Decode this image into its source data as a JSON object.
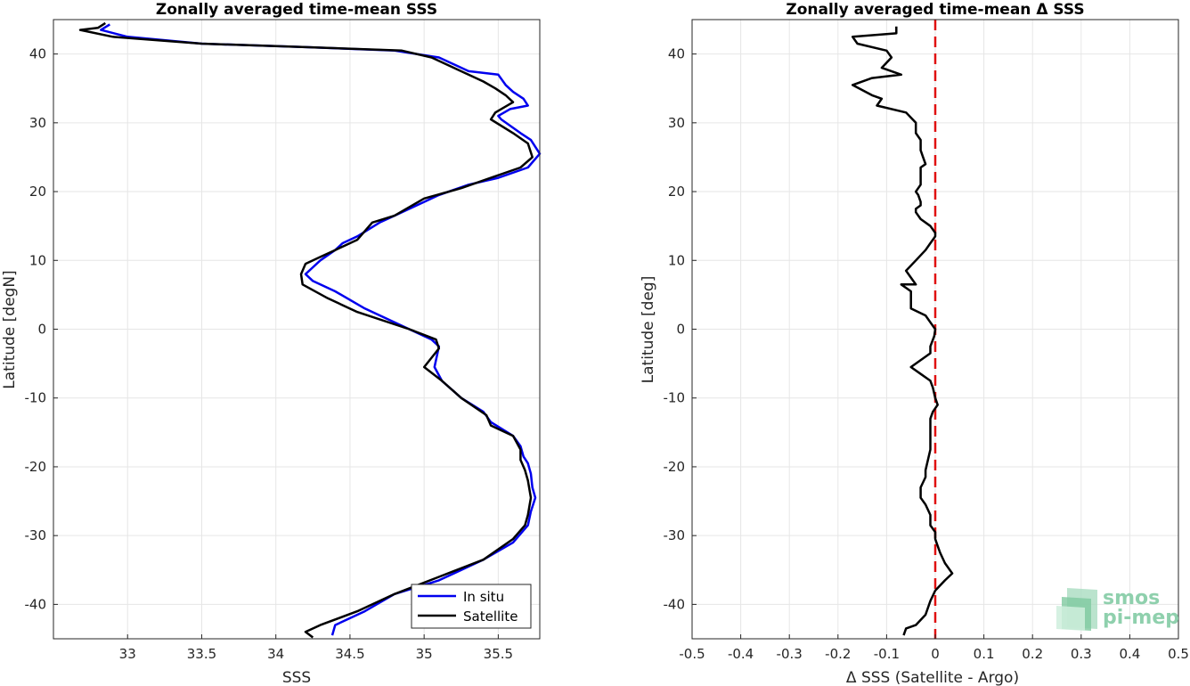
{
  "chart_data": [
    {
      "type": "line",
      "title": "Zonally averaged time-mean SSS",
      "xlabel": "SSS",
      "ylabel": "Latitude [degN]",
      "xlim": [
        32.5,
        35.78
      ],
      "ylim": [
        -45,
        45
      ],
      "xticks": [
        "33",
        "33.5",
        "34",
        "34.5",
        "35",
        "35.5"
      ],
      "yticks": [
        "40",
        "30",
        "20",
        "10",
        "0",
        "-10",
        "-20",
        "-30",
        "-40"
      ],
      "grid": true,
      "legend": "bottom-right",
      "series": [
        {
          "name": "In situ",
          "color": "#0000ee",
          "points": [
            [
              32.88,
              44.3
            ],
            [
              32.82,
              43.5
            ],
            [
              33.0,
              42.5
            ],
            [
              33.5,
              41.5
            ],
            [
              34.2,
              41.0
            ],
            [
              34.8,
              40.5
            ],
            [
              35.1,
              39.5
            ],
            [
              35.3,
              37.5
            ],
            [
              35.5,
              37.0
            ],
            [
              35.55,
              35.5
            ],
            [
              35.6,
              34.5
            ],
            [
              35.67,
              33.5
            ],
            [
              35.7,
              32.5
            ],
            [
              35.58,
              32.0
            ],
            [
              35.5,
              31.0
            ],
            [
              35.52,
              30.5
            ],
            [
              35.65,
              28.5
            ],
            [
              35.72,
              27.5
            ],
            [
              35.78,
              25.5
            ],
            [
              35.7,
              23.5
            ],
            [
              35.5,
              22.0
            ],
            [
              35.3,
              21.0
            ],
            [
              35.1,
              19.5
            ],
            [
              35.0,
              18.5
            ],
            [
              34.8,
              16.5
            ],
            [
              34.7,
              15.5
            ],
            [
              34.55,
              13.5
            ],
            [
              34.45,
              12.5
            ],
            [
              34.4,
              11.5
            ],
            [
              34.3,
              10.0
            ],
            [
              34.25,
              9.0
            ],
            [
              34.2,
              8.0
            ],
            [
              34.25,
              7.0
            ],
            [
              34.4,
              5.5
            ],
            [
              34.6,
              3.0
            ],
            [
              34.9,
              0.0
            ],
            [
              35.05,
              -1.5
            ],
            [
              35.1,
              -2.5
            ],
            [
              35.07,
              -5.5
            ],
            [
              35.12,
              -7.5
            ],
            [
              35.25,
              -10.0
            ],
            [
              35.4,
              -12.0
            ],
            [
              35.45,
              -13.5
            ],
            [
              35.6,
              -15.5
            ],
            [
              35.65,
              -17.0
            ],
            [
              35.67,
              -18.5
            ],
            [
              35.7,
              -19.5
            ],
            [
              35.72,
              -21.0
            ],
            [
              35.73,
              -23.0
            ],
            [
              35.75,
              -24.5
            ],
            [
              35.72,
              -26.5
            ],
            [
              35.7,
              -28.5
            ],
            [
              35.6,
              -31.0
            ],
            [
              35.4,
              -33.5
            ],
            [
              35.1,
              -36.5
            ],
            [
              34.8,
              -38.5
            ],
            [
              34.6,
              -41.0
            ],
            [
              34.4,
              -43.0
            ],
            [
              34.38,
              -44.5
            ]
          ]
        },
        {
          "name": "Satellite",
          "color": "#000000",
          "points": [
            [
              32.85,
              44.5
            ],
            [
              32.8,
              43.8
            ],
            [
              32.68,
              43.5
            ],
            [
              32.9,
              42.5
            ],
            [
              33.5,
              41.5
            ],
            [
              34.2,
              41.0
            ],
            [
              34.85,
              40.5
            ],
            [
              35.05,
              39.5
            ],
            [
              35.2,
              38.0
            ],
            [
              35.4,
              36.0
            ],
            [
              35.48,
              35.0
            ],
            [
              35.55,
              34.0
            ],
            [
              35.6,
              33.0
            ],
            [
              35.52,
              32.0
            ],
            [
              35.48,
              31.5
            ],
            [
              35.45,
              30.5
            ],
            [
              35.6,
              28.5
            ],
            [
              35.7,
              27.0
            ],
            [
              35.73,
              25.0
            ],
            [
              35.65,
              23.5
            ],
            [
              35.45,
              22.0
            ],
            [
              35.25,
              20.5
            ],
            [
              35.0,
              19.0
            ],
            [
              34.8,
              16.5
            ],
            [
              34.65,
              15.5
            ],
            [
              34.55,
              13.0
            ],
            [
              34.4,
              11.5
            ],
            [
              34.3,
              10.5
            ],
            [
              34.2,
              9.5
            ],
            [
              34.17,
              8.0
            ],
            [
              34.18,
              6.5
            ],
            [
              34.35,
              4.5
            ],
            [
              34.55,
              2.5
            ],
            [
              34.9,
              0.0
            ],
            [
              35.08,
              -1.5
            ],
            [
              35.1,
              -2.8
            ],
            [
              35.0,
              -5.5
            ],
            [
              35.12,
              -7.5
            ],
            [
              35.25,
              -10.0
            ],
            [
              35.42,
              -12.5
            ],
            [
              35.45,
              -14.0
            ],
            [
              35.6,
              -15.5
            ],
            [
              35.65,
              -17.5
            ],
            [
              35.65,
              -19.0
            ],
            [
              35.68,
              -20.5
            ],
            [
              35.7,
              -22.0
            ],
            [
              35.72,
              -24.5
            ],
            [
              35.7,
              -27.0
            ],
            [
              35.68,
              -28.5
            ],
            [
              35.6,
              -30.5
            ],
            [
              35.4,
              -33.5
            ],
            [
              35.1,
              -36.0
            ],
            [
              34.8,
              -38.5
            ],
            [
              34.55,
              -41.0
            ],
            [
              34.3,
              -43.0
            ],
            [
              34.2,
              -44.0
            ],
            [
              34.25,
              -44.8
            ]
          ]
        }
      ]
    },
    {
      "type": "line",
      "title": "Zonally averaged time-mean Δ SSS",
      "xlabel": "Δ SSS (Satellite - Argo)",
      "ylabel": "Latitude [deg]",
      "xlim": [
        -0.5,
        0.5
      ],
      "ylim": [
        -45,
        45
      ],
      "xticks": [
        "-0.5",
        "-0.4",
        "-0.3",
        "-0.2",
        "-0.1",
        "0",
        "0.1",
        "0.2",
        "0.3",
        "0.4",
        "0.5"
      ],
      "yticks": [
        "40",
        "30",
        "20",
        "10",
        "0",
        "-10",
        "-20",
        "-30",
        "-40"
      ],
      "grid": true,
      "reference_line": {
        "x": 0,
        "color": "#e01010",
        "style": "dashed"
      },
      "series": [
        {
          "color": "#000000",
          "points": [
            [
              -0.08,
              44.0
            ],
            [
              -0.08,
              43.0
            ],
            [
              -0.17,
              42.5
            ],
            [
              -0.16,
              41.5
            ],
            [
              -0.1,
              40.5
            ],
            [
              -0.09,
              39.5
            ],
            [
              -0.11,
              38.0
            ],
            [
              -0.07,
              37.0
            ],
            [
              -0.13,
              36.5
            ],
            [
              -0.17,
              35.5
            ],
            [
              -0.13,
              34.0
            ],
            [
              -0.11,
              33.5
            ],
            [
              -0.12,
              32.5
            ],
            [
              -0.06,
              31.5
            ],
            [
              -0.04,
              30.0
            ],
            [
              -0.04,
              28.5
            ],
            [
              -0.03,
              27.5
            ],
            [
              -0.03,
              26.0
            ],
            [
              -0.025,
              25.0
            ],
            [
              -0.02,
              24.0
            ],
            [
              -0.03,
              23.5
            ],
            [
              -0.03,
              22.5
            ],
            [
              -0.03,
              21.0
            ],
            [
              -0.04,
              20.0
            ],
            [
              -0.035,
              19.5
            ],
            [
              -0.03,
              18.5
            ],
            [
              -0.03,
              18.0
            ],
            [
              -0.04,
              17.5
            ],
            [
              -0.04,
              17.0
            ],
            [
              -0.03,
              16.0
            ],
            [
              -0.01,
              15.0
            ],
            [
              0.0,
              14.0
            ],
            [
              0.0,
              13.5
            ],
            [
              -0.01,
              12.5
            ],
            [
              -0.02,
              11.5
            ],
            [
              -0.04,
              10.0
            ],
            [
              -0.06,
              8.5
            ],
            [
              -0.05,
              7.5
            ],
            [
              -0.04,
              6.5
            ],
            [
              -0.07,
              6.5
            ],
            [
              -0.05,
              5.5
            ],
            [
              -0.05,
              4.5
            ],
            [
              -0.05,
              3.0
            ],
            [
              -0.02,
              2.0
            ],
            [
              -0.01,
              1.0
            ],
            [
              0.0,
              0.0
            ],
            [
              -0.002,
              -1.0
            ],
            [
              -0.01,
              -2.5
            ],
            [
              -0.01,
              -3.5
            ],
            [
              -0.05,
              -5.5
            ],
            [
              -0.03,
              -6.5
            ],
            [
              -0.01,
              -7.5
            ],
            [
              -0.005,
              -8.5
            ],
            [
              0.0,
              -10.0
            ],
            [
              0.005,
              -11.0
            ],
            [
              -0.005,
              -12.0
            ],
            [
              -0.01,
              -13.0
            ],
            [
              -0.01,
              -14.5
            ],
            [
              -0.01,
              -16.0
            ],
            [
              -0.01,
              -17.5
            ],
            [
              -0.015,
              -19.0
            ],
            [
              -0.02,
              -20.5
            ],
            [
              -0.02,
              -21.5
            ],
            [
              -0.03,
              -23.0
            ],
            [
              -0.03,
              -24.5
            ],
            [
              -0.02,
              -25.5
            ],
            [
              -0.01,
              -27.0
            ],
            [
              -0.01,
              -28.5
            ],
            [
              0.0,
              -29.5
            ],
            [
              0.0,
              -30.5
            ],
            [
              0.005,
              -31.5
            ],
            [
              0.01,
              -32.5
            ],
            [
              0.02,
              -34.0
            ],
            [
              0.035,
              -35.5
            ],
            [
              0.02,
              -36.5
            ],
            [
              0.0,
              -38.0
            ],
            [
              -0.01,
              -39.5
            ],
            [
              -0.02,
              -41.5
            ],
            [
              -0.04,
              -43.0
            ],
            [
              -0.06,
              -43.5
            ],
            [
              -0.065,
              -44.5
            ]
          ]
        }
      ]
    }
  ],
  "legend": {
    "items": [
      {
        "label": "In situ",
        "color": "#0000ee"
      },
      {
        "label": "Satellite",
        "color": "#000000"
      }
    ]
  },
  "logo": {
    "line1": "smos",
    "line2": "pi-mep",
    "color": "#8fd0ad"
  }
}
